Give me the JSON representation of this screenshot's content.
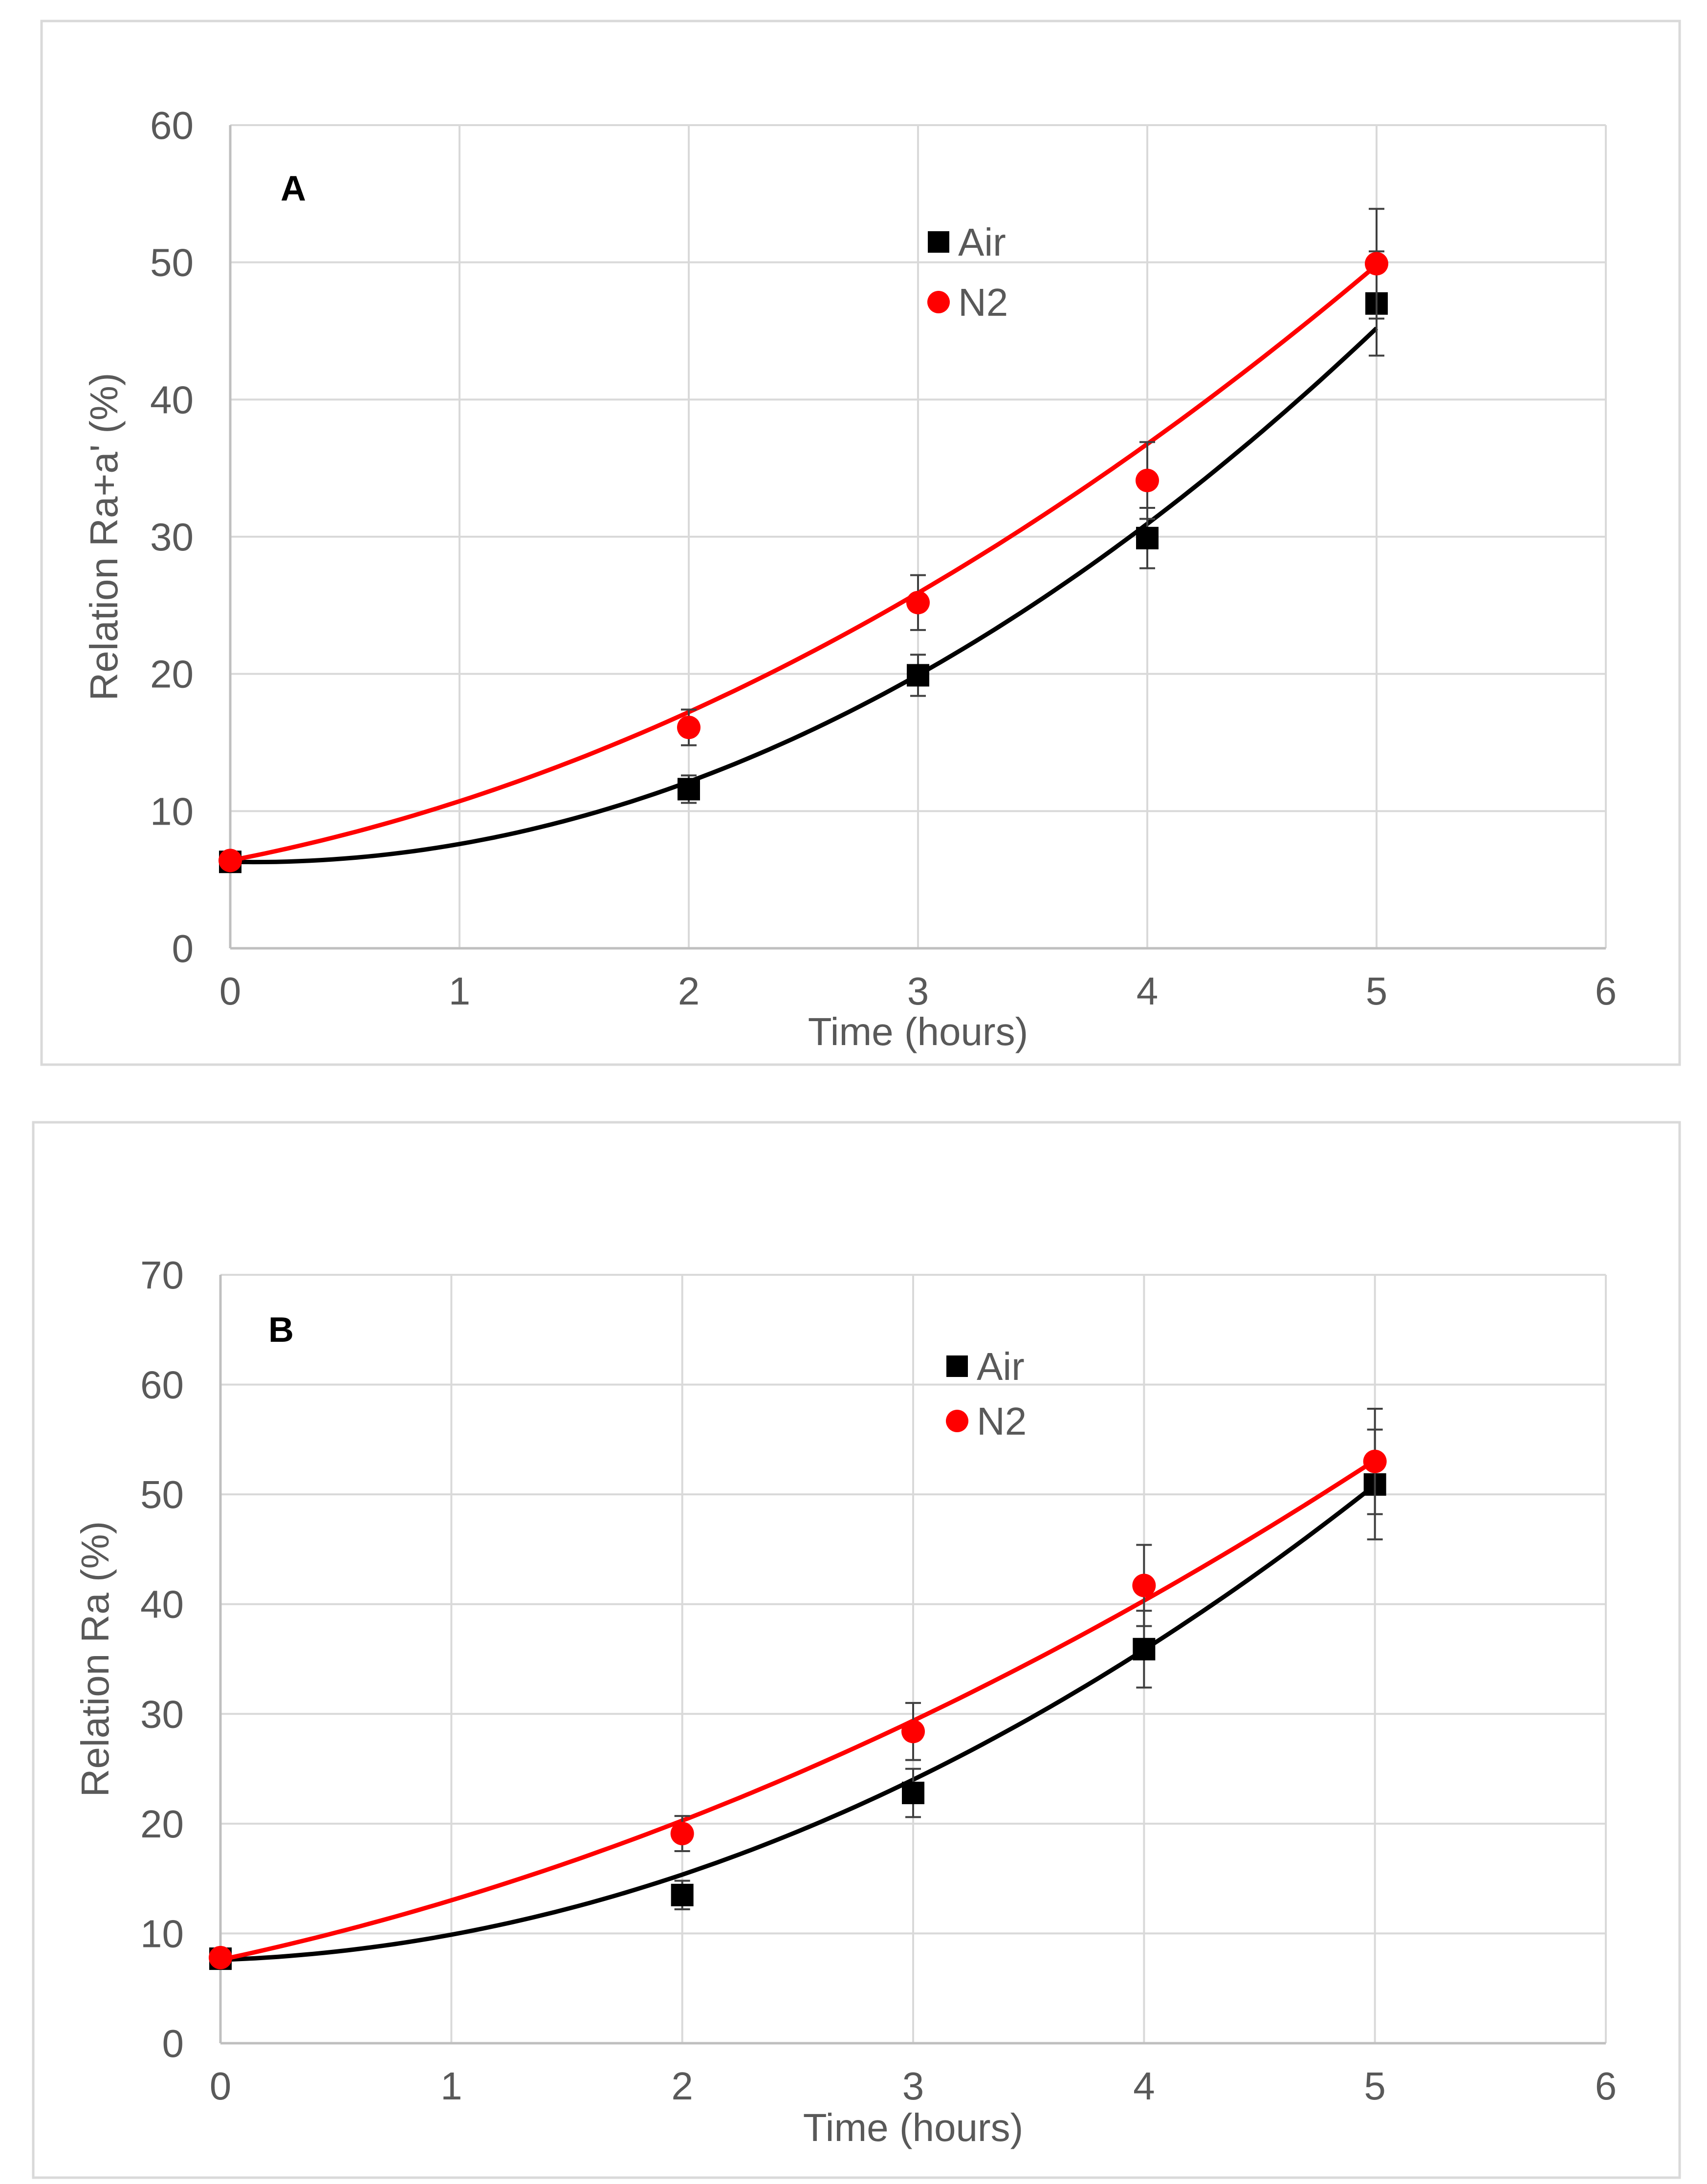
{
  "colors": {
    "air": "#000000",
    "n2": "#ff0000",
    "grid": "#d9d9d9",
    "axis": "#bfbfbf",
    "tick_text": "#595959",
    "frame": "#d9d9d9"
  },
  "chart_data": [
    {
      "type": "scatter",
      "panel_label": "A",
      "xlabel": "Time (hours)",
      "ylabel": "Relation Ra+a' (%)",
      "xlim": [
        0,
        6
      ],
      "ylim": [
        0,
        60
      ],
      "xticks": [
        "0",
        "1",
        "2",
        "3",
        "4",
        "5",
        "6"
      ],
      "yticks": [
        "0",
        "10",
        "20",
        "30",
        "40",
        "50",
        "60"
      ],
      "grid": true,
      "legend_position": "top-center",
      "series": [
        {
          "name": "Air",
          "marker": "square",
          "color_key": "air",
          "x": [
            0,
            2,
            3,
            4,
            5
          ],
          "y": [
            6.3,
            11.6,
            19.9,
            29.9,
            47.0
          ],
          "err": [
            0.5,
            1.0,
            1.5,
            2.2,
            3.8
          ],
          "trend": [
            6.3,
            -0.32,
            1.62
          ]
        },
        {
          "name": "N2",
          "marker": "circle",
          "color_key": "n2",
          "x": [
            0,
            2,
            3,
            4,
            5
          ],
          "y": [
            6.4,
            16.1,
            25.2,
            34.1,
            49.9
          ],
          "err": [
            0.4,
            1.3,
            2.0,
            2.8,
            4.0
          ],
          "trend": [
            6.4,
            3.23,
            1.09
          ]
        }
      ]
    },
    {
      "type": "scatter",
      "panel_label": "B",
      "xlabel": "Time (hours)",
      "ylabel": "Relation Ra (%)",
      "xlim": [
        0,
        6
      ],
      "ylim": [
        0,
        70
      ],
      "xticks": [
        "0",
        "1",
        "2",
        "3",
        "4",
        "5",
        "6"
      ],
      "yticks": [
        "0",
        "10",
        "20",
        "30",
        "40",
        "50",
        "60",
        "70"
      ],
      "grid": true,
      "legend_position": "top-center",
      "series": [
        {
          "name": "Air",
          "marker": "square",
          "color_key": "air",
          "x": [
            0,
            2,
            3,
            4,
            5
          ],
          "y": [
            7.7,
            13.5,
            22.8,
            35.9,
            50.9
          ],
          "err": [
            0.5,
            1.3,
            2.2,
            3.5,
            5.0
          ],
          "trend": [
            7.6,
            0.7,
            1.59
          ]
        },
        {
          "name": "N2",
          "marker": "circle",
          "color_key": "n2",
          "x": [
            0,
            2,
            3,
            4,
            5
          ],
          "y": [
            7.8,
            19.1,
            28.4,
            41.7,
            53.0
          ],
          "err": [
            0.5,
            1.6,
            2.6,
            3.7,
            4.8
          ],
          "trend": [
            7.6,
            4.5,
            0.92
          ]
        }
      ]
    }
  ]
}
